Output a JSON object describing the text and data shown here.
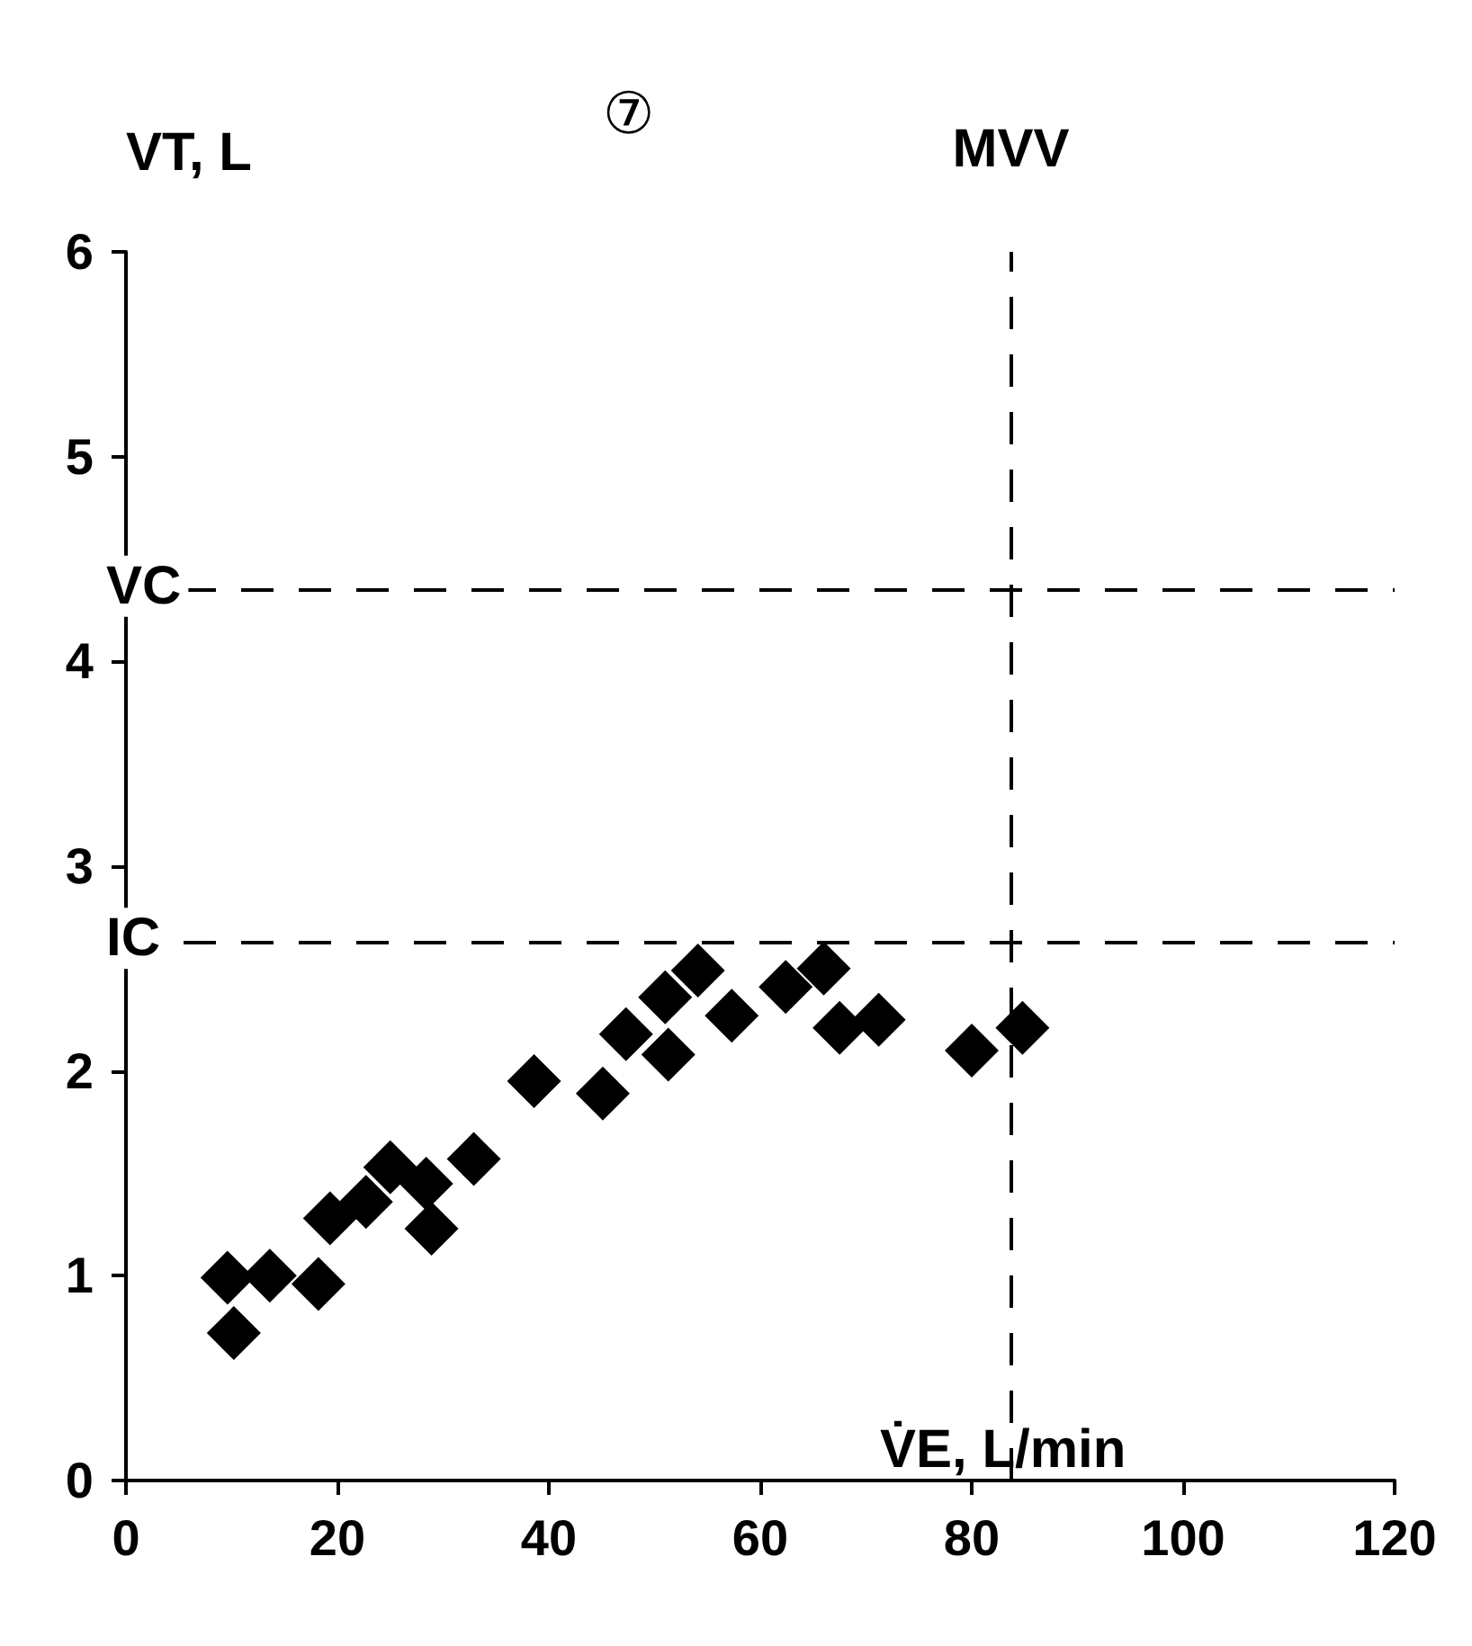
{
  "chart_data": {
    "type": "scatter",
    "title": "⑦",
    "xlabel": "V̇E, L/min",
    "ylabel": "VT, L",
    "x": [
      10.2,
      9.6,
      13.6,
      18.2,
      19.3,
      22.7,
      25,
      28.9,
      28.4,
      32.9,
      38.6,
      45.1,
      47.3,
      51.3,
      51,
      54.1,
      57.3,
      62.4,
      66,
      67.5,
      71.2,
      80,
      84.8
    ],
    "series": [
      {
        "color": "#000000",
        "values": [
          0.72,
          0.99,
          1.0,
          0.96,
          1.28,
          1.36,
          1.53,
          1.23,
          1.45,
          1.57,
          1.95,
          1.89,
          2.18,
          2.08,
          2.36,
          2.49,
          2.27,
          2.41,
          2.5,
          2.21,
          2.25,
          2.1,
          2.21
        ]
      }
    ],
    "xlim": [
      0,
      120
    ],
    "xticks": [
      0,
      20,
      40,
      60,
      80,
      100,
      120
    ],
    "ylim": [
      0,
      6
    ],
    "yticks": [
      0,
      1,
      2,
      3,
      4,
      5,
      6
    ],
    "ref_lines": [
      {
        "axis": "y",
        "value": 4.35,
        "label": "VC",
        "line_style": "dashed"
      },
      {
        "axis": "y",
        "value": 2.63,
        "label": "IC",
        "line_style": "dashed"
      },
      {
        "axis": "x",
        "value": 83.7,
        "label": "MVV",
        "line_style": "dashed"
      }
    ],
    "marker": "diamond",
    "grid": false
  }
}
